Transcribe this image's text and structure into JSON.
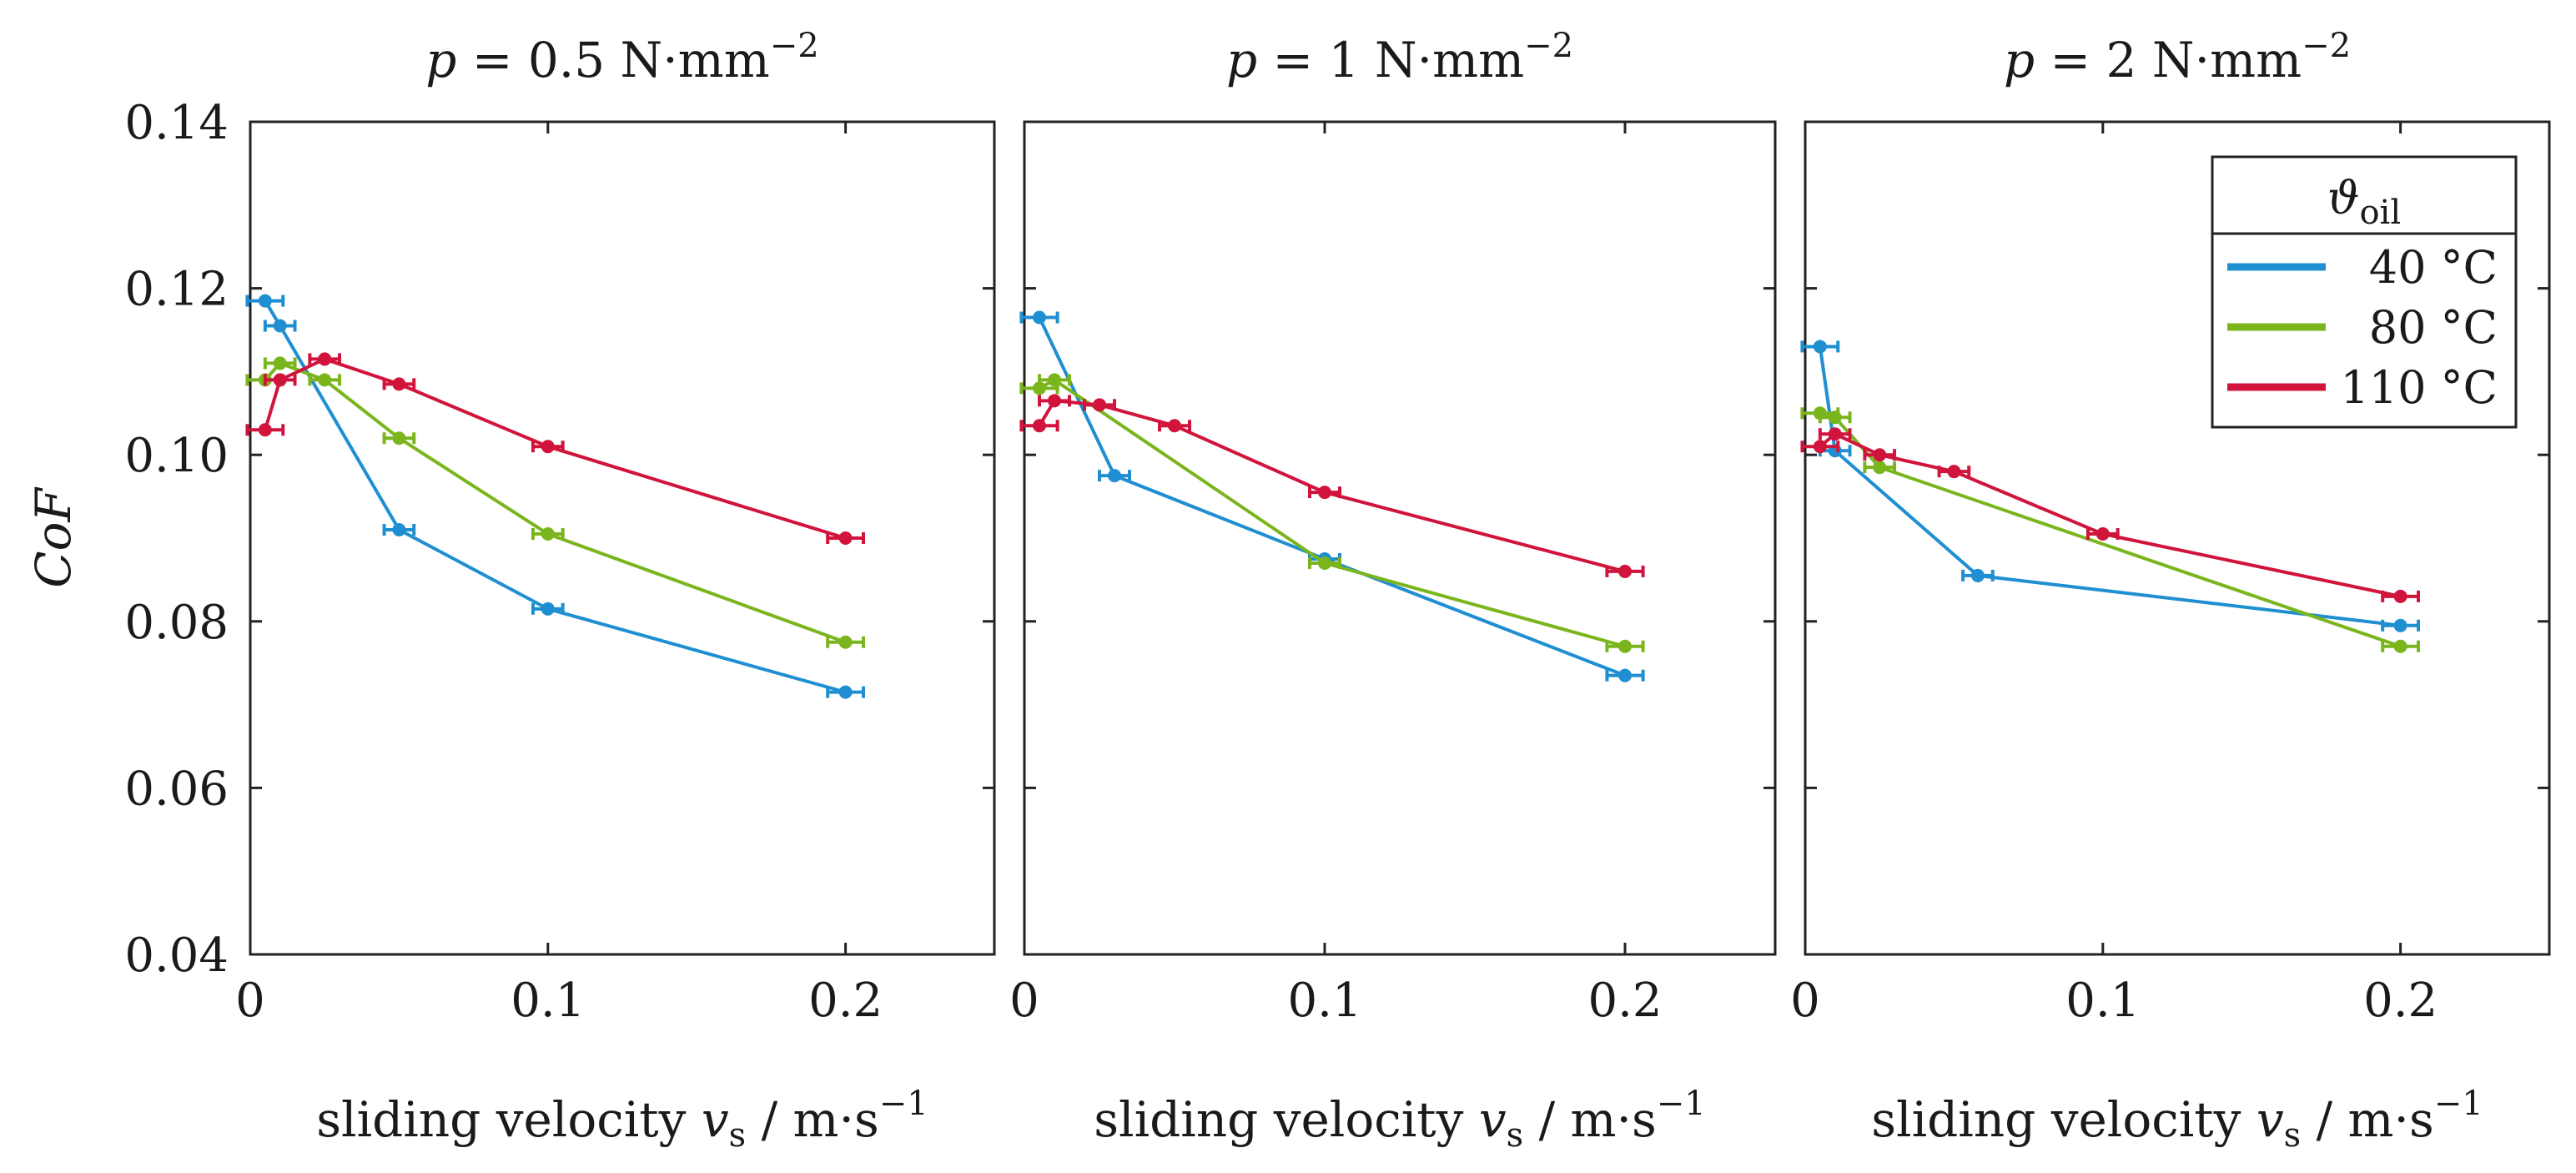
{
  "chart_data": [
    {
      "type": "line",
      "title": {
        "var": "p",
        "eq": " = 0.5 N·mm",
        "sup": "−2"
      },
      "xlabel": {
        "text": "sliding velocity ",
        "var": "v",
        "sub": "s",
        "unit": " / m·s",
        "sup": "−1"
      },
      "ylabel": "CoF",
      "xlim": [
        0,
        0.25
      ],
      "ylim": [
        0.04,
        0.14
      ],
      "xticks": [
        "0",
        "0.1",
        "0.2"
      ],
      "yticks": [
        "0.04",
        "0.06",
        "0.08",
        "0.10",
        "0.12",
        "0.14"
      ],
      "series": [
        {
          "name": "40 °C",
          "color": "#1f8fd2",
          "points": [
            [
              0.005,
              0.1185,
              0.006
            ],
            [
              0.01,
              0.1155,
              0.005
            ],
            [
              0.05,
              0.091,
              0.005
            ],
            [
              0.1,
              0.0815,
              0.005
            ],
            [
              0.2,
              0.0715,
              0.006
            ]
          ]
        },
        {
          "name": "80 °C",
          "color": "#7ab51d",
          "points": [
            [
              0.005,
              0.109,
              0.006
            ],
            [
              0.01,
              0.111,
              0.005
            ],
            [
              0.025,
              0.109,
              0.005
            ],
            [
              0.05,
              0.102,
              0.005
            ],
            [
              0.1,
              0.0905,
              0.005
            ],
            [
              0.2,
              0.0775,
              0.006
            ]
          ]
        },
        {
          "name": "110 °C",
          "color": "#d0143c",
          "points": [
            [
              0.005,
              0.103,
              0.006
            ],
            [
              0.01,
              0.109,
              0.005
            ],
            [
              0.025,
              0.1115,
              0.005
            ],
            [
              0.05,
              0.1085,
              0.005
            ],
            [
              0.1,
              0.101,
              0.005
            ],
            [
              0.2,
              0.09,
              0.006
            ]
          ]
        }
      ]
    },
    {
      "type": "line",
      "title": {
        "var": "p",
        "eq": " = 1 N·mm",
        "sup": "−2"
      },
      "xlabel": {
        "text": "sliding velocity ",
        "var": "v",
        "sub": "s",
        "unit": " / m·s",
        "sup": "−1"
      },
      "xlim": [
        0,
        0.25
      ],
      "ylim": [
        0.04,
        0.14
      ],
      "xticks": [
        "0",
        "0.1",
        "0.2"
      ],
      "series": [
        {
          "name": "40 °C",
          "color": "#1f8fd2",
          "points": [
            [
              0.005,
              0.1165,
              0.006
            ],
            [
              0.03,
              0.0975,
              0.005
            ],
            [
              0.1,
              0.0875,
              0.005
            ],
            [
              0.2,
              0.0735,
              0.006
            ]
          ]
        },
        {
          "name": "80 °C",
          "color": "#7ab51d",
          "points": [
            [
              0.005,
              0.108,
              0.006
            ],
            [
              0.01,
              0.109,
              0.005
            ],
            [
              0.1,
              0.087,
              0.005
            ],
            [
              0.2,
              0.077,
              0.006
            ]
          ]
        },
        {
          "name": "110 °C",
          "color": "#d0143c",
          "points": [
            [
              0.005,
              0.1035,
              0.006
            ],
            [
              0.01,
              0.1065,
              0.005
            ],
            [
              0.025,
              0.106,
              0.005
            ],
            [
              0.05,
              0.1035,
              0.005
            ],
            [
              0.1,
              0.0955,
              0.005
            ],
            [
              0.2,
              0.086,
              0.006
            ]
          ]
        }
      ]
    },
    {
      "type": "line",
      "title": {
        "var": "p",
        "eq": " = 2 N·mm",
        "sup": "−2"
      },
      "xlabel": {
        "text": "sliding velocity ",
        "var": "v",
        "sub": "s",
        "unit": " / m·s",
        "sup": "−1"
      },
      "xlim": [
        0,
        0.25
      ],
      "ylim": [
        0.04,
        0.14
      ],
      "xticks": [
        "0",
        "0.1",
        "0.2"
      ],
      "legend": {
        "position": "top-right",
        "title_var": "ϑ",
        "title_sub": "oil"
      },
      "series": [
        {
          "name": "40 °C",
          "color": "#1f8fd2",
          "points": [
            [
              0.005,
              0.113,
              0.006
            ],
            [
              0.01,
              0.1005,
              0.005
            ],
            [
              0.058,
              0.0855,
              0.005
            ],
            [
              0.2,
              0.0795,
              0.006
            ]
          ]
        },
        {
          "name": "80 °C",
          "color": "#7ab51d",
          "points": [
            [
              0.005,
              0.105,
              0.006
            ],
            [
              0.01,
              0.1045,
              0.005
            ],
            [
              0.025,
              0.0985,
              0.005
            ],
            [
              0.2,
              0.077,
              0.006
            ]
          ]
        },
        {
          "name": "110 °C",
          "color": "#d0143c",
          "points": [
            [
              0.005,
              0.101,
              0.006
            ],
            [
              0.01,
              0.1025,
              0.005
            ],
            [
              0.025,
              0.1,
              0.005
            ],
            [
              0.05,
              0.098,
              0.005
            ],
            [
              0.1,
              0.0905,
              0.005
            ],
            [
              0.2,
              0.083,
              0.006
            ]
          ]
        }
      ]
    }
  ]
}
